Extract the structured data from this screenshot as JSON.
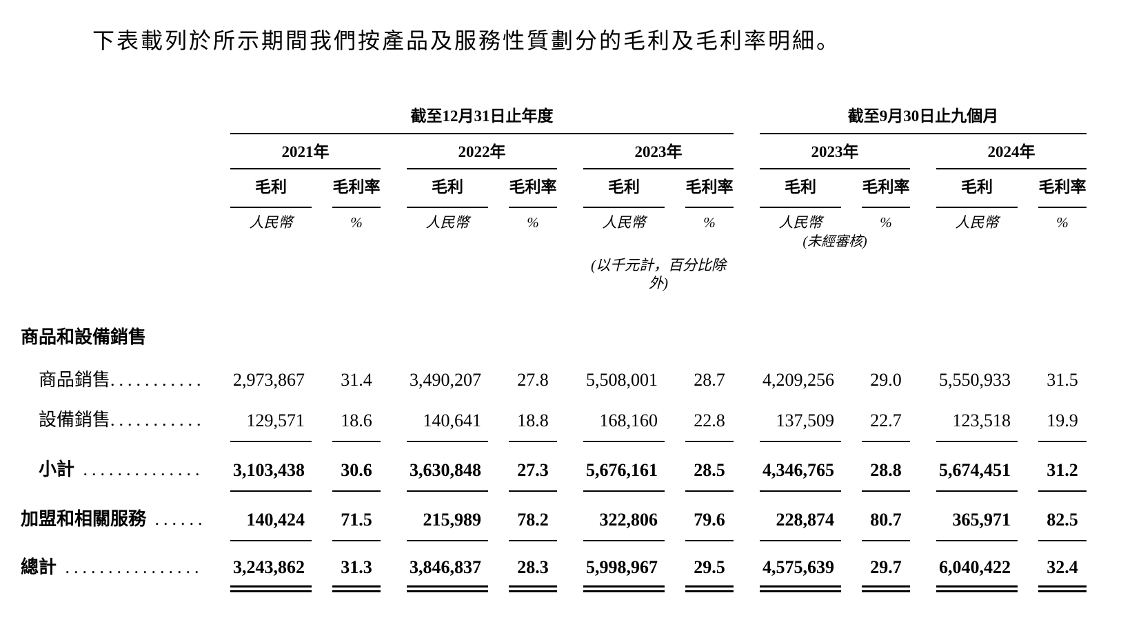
{
  "page": {
    "background": "#ffffff",
    "text_color": "#000000"
  },
  "title": "下表載列於所示期間我們按產品及服務性質劃分的毛利及毛利率明細。",
  "table": {
    "column_groups": [
      {
        "label": "截至12月31日止年度",
        "years": [
          "2021年",
          "2022年",
          "2023年"
        ]
      },
      {
        "label": "截至9月30日止九個月",
        "years": [
          "2023年",
          "2024年"
        ]
      }
    ],
    "subcolumns": {
      "gross_profit": "毛利",
      "gross_margin": "毛利率"
    },
    "unit_row": {
      "currency": "人民幣",
      "percent": "%"
    },
    "unaudited_note": "(未經審核)",
    "unaudited_under_year_index": 3,
    "units_note": "(以千元計，百分比除外)",
    "units_note_under_year_index": 2,
    "rows": [
      {
        "type": "section",
        "label": "商品和設備銷售",
        "indent": false,
        "bold": true,
        "rule_below": null,
        "leader": "",
        "values": []
      },
      {
        "type": "data",
        "label": "商品銷售",
        "leader": "............",
        "indent": true,
        "bold": false,
        "rule_below": null,
        "values": [
          "2,973,867",
          "31.4",
          "3,490,207",
          "27.8",
          "5,508,001",
          "28.7",
          "4,209,256",
          "29.0",
          "5,550,933",
          "31.5"
        ]
      },
      {
        "type": "data",
        "label": "設備銷售",
        "leader": "............",
        "indent": true,
        "bold": false,
        "rule_below": "single",
        "values": [
          "129,571",
          "18.6",
          "140,641",
          "18.8",
          "168,160",
          "22.8",
          "137,509",
          "22.7",
          "123,518",
          "19.9"
        ]
      },
      {
        "type": "data",
        "label": "小計",
        "leader": " ..............",
        "indent": true,
        "bold": true,
        "rule_below": "single",
        "values": [
          "3,103,438",
          "30.6",
          "3,630,848",
          "27.3",
          "5,676,161",
          "28.5",
          "4,346,765",
          "28.8",
          "5,674,451",
          "31.2"
        ]
      },
      {
        "type": "data",
        "label": "加盟和相關服務",
        "leader": " ........",
        "indent": false,
        "bold": true,
        "rule_below": "single",
        "values": [
          "140,424",
          "71.5",
          "215,989",
          "78.2",
          "322,806",
          "79.6",
          "228,874",
          "80.7",
          "365,971",
          "82.5"
        ]
      },
      {
        "type": "data",
        "label": "總計",
        "leader": " ................",
        "indent": false,
        "bold": true,
        "rule_below": "double",
        "values": [
          "3,243,862",
          "31.3",
          "3,846,837",
          "28.3",
          "5,998,967",
          "29.5",
          "4,575,639",
          "29.7",
          "6,040,422",
          "32.4"
        ]
      }
    ]
  }
}
